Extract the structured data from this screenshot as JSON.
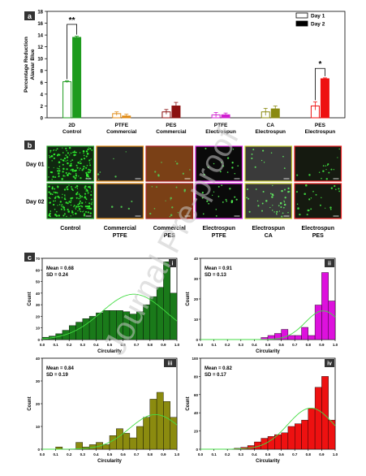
{
  "panel_labels": {
    "a": "a",
    "b": "b",
    "c": "c"
  },
  "watermark": "Journal Pre-proof",
  "colors": {
    "panel_label_bg": "#333333",
    "green": "#1e9b1e",
    "orange": "#d98a1a",
    "maroon": "#8b1a1a",
    "magenta": "#d020d0",
    "olive": "#8a8a10",
    "red": "#ee1111",
    "hist_green": "#1a7a1a",
    "curve": "#44dd44"
  },
  "chart_data": [
    {
      "id": "a",
      "type": "bar",
      "ylabel": "Percentage Reduction Alamar Blue",
      "ylim": [
        0,
        18
      ],
      "yticks": [
        0,
        2,
        4,
        6,
        8,
        10,
        12,
        14,
        16,
        18
      ],
      "categories": [
        {
          "line1": "2D",
          "line2": "Control",
          "color": "#1e9b1e"
        },
        {
          "line1": "PTFE",
          "line2": "Commercial",
          "color": "#e08a14"
        },
        {
          "line1": "PES",
          "line2": "Commercial",
          "color": "#8b1010"
        },
        {
          "line1": "PTFE",
          "line2": "Electrospun",
          "color": "#d020d0"
        },
        {
          "line1": "CA",
          "line2": "Electrospun",
          "color": "#8a8a10"
        },
        {
          "line1": "PES",
          "line2": "Electrospun",
          "color": "#ee1111"
        }
      ],
      "series": [
        {
          "name": "Day 1",
          "values": [
            6.1,
            0.7,
            1.0,
            0.5,
            1.0,
            2.0
          ],
          "errors": [
            0.15,
            0.3,
            0.4,
            0.4,
            0.6,
            0.7
          ]
        },
        {
          "name": "Day 2",
          "values": [
            13.6,
            0.3,
            2.0,
            0.5,
            1.5,
            6.6
          ],
          "errors": [
            0.2,
            0.3,
            0.6,
            0.3,
            0.5,
            0.15
          ]
        }
      ],
      "annotations": [
        {
          "category": 0,
          "text": "**"
        },
        {
          "category": 5,
          "text": "*"
        }
      ]
    },
    {
      "id": "c-i",
      "type": "histogram",
      "roman": "i",
      "color": "#1a7a1a",
      "xlabel": "Circularity",
      "ylabel": "Count",
      "xlim": [
        0,
        1.0
      ],
      "ylim": [
        0,
        70
      ],
      "yticks": [
        0,
        10,
        20,
        30,
        40,
        50,
        60,
        70
      ],
      "bins": [
        0,
        0.05,
        0.1,
        0.15,
        0.2,
        0.25,
        0.3,
        0.35,
        0.4,
        0.45,
        0.5,
        0.55,
        0.6,
        0.65,
        0.7,
        0.75,
        0.8,
        0.85,
        0.9,
        0.95
      ],
      "counts": [
        2,
        3,
        5,
        8,
        12,
        15,
        18,
        20,
        23,
        25,
        25,
        25,
        24,
        22,
        24,
        30,
        37,
        45,
        67,
        40
      ],
      "mean_text": "Mean = 0.68",
      "sd_text": "SD = 0.24",
      "mean": 0.68,
      "sd": 0.24
    },
    {
      "id": "c-ii",
      "type": "histogram",
      "roman": "ii",
      "color": "#dd11dd",
      "xlabel": "Circularity",
      "ylabel": "Count",
      "xlim": [
        0,
        1.0
      ],
      "ylim": [
        0,
        40
      ],
      "yticks": [
        0,
        10,
        20,
        30,
        40
      ],
      "bins": [
        0.45,
        0.5,
        0.55,
        0.6,
        0.65,
        0.7,
        0.75,
        0.8,
        0.85,
        0.9,
        0.95
      ],
      "counts": [
        1,
        2,
        3,
        5,
        2,
        2,
        6,
        2,
        17,
        33,
        19
      ],
      "mean_text": "Mean = 0.91",
      "sd_text": "SD = 0.13",
      "mean": 0.91,
      "sd": 0.13
    },
    {
      "id": "c-iii",
      "type": "histogram",
      "roman": "iii",
      "color": "#8b8b0f",
      "xlabel": "Circularity",
      "ylabel": "Count",
      "xlim": [
        0,
        1.0
      ],
      "ylim": [
        0,
        40
      ],
      "yticks": [
        0,
        10,
        20,
        30,
        40
      ],
      "bins": [
        0.1,
        0.15,
        0.2,
        0.25,
        0.3,
        0.35,
        0.4,
        0.45,
        0.5,
        0.55,
        0.6,
        0.65,
        0.7,
        0.75,
        0.8,
        0.85,
        0.9,
        0.95
      ],
      "counts": [
        1,
        0,
        0,
        3,
        1,
        2,
        3,
        2,
        6,
        9,
        7,
        5,
        10,
        14,
        22,
        25,
        21,
        14
      ],
      "mean_text": "Mean = 0.84",
      "sd_text": "SD = 0.19",
      "mean": 0.84,
      "sd": 0.19
    },
    {
      "id": "c-iv",
      "type": "histogram",
      "roman": "iv",
      "color": "#ee1111",
      "xlabel": "Circularity",
      "ylabel": "Count",
      "xlim": [
        0,
        1.0
      ],
      "ylim": [
        0,
        100
      ],
      "yticks": [
        0,
        20,
        40,
        60,
        80,
        100
      ],
      "bins": [
        0.25,
        0.3,
        0.35,
        0.4,
        0.45,
        0.5,
        0.55,
        0.6,
        0.65,
        0.7,
        0.75,
        0.8,
        0.85,
        0.9,
        0.95
      ],
      "counts": [
        1,
        2,
        4,
        8,
        12,
        14,
        16,
        18,
        25,
        28,
        32,
        45,
        68,
        80,
        32
      ],
      "mean_text": "Mean = 0.82",
      "sd_text": "SD = 0.17",
      "mean": 0.82,
      "sd": 0.17
    }
  ],
  "micrographs": {
    "rows": [
      {
        "label": "Day 01"
      },
      {
        "label": "Day 02"
      }
    ],
    "columns": [
      {
        "line1": "Control",
        "line2": "",
        "border": "#33aa33",
        "bg": "#102810",
        "dots": "#33ff33"
      },
      {
        "line1": "Commercial",
        "line2": "PTFE",
        "border": "#e08a14",
        "bg": "#262626",
        "dots": "#55dd55"
      },
      {
        "line1": "Commercial",
        "line2": "PES",
        "border": "#aa2222",
        "bg": "#7a4016",
        "dots": "#55cc55"
      },
      {
        "line1": "Electrospun",
        "line2": "PTFE",
        "border": "#dd22dd",
        "bg": "#0a0a0a",
        "dots": "#55ff55"
      },
      {
        "line1": "Electrospun",
        "line2": "CA",
        "border": "#cccc33",
        "bg": "#3a3a3a",
        "dots": "#66ff66"
      },
      {
        "line1": "Electrospun",
        "line2": "PES",
        "border": "#ee2222",
        "bg": "#151a10",
        "dots": "#44ee44"
      }
    ]
  }
}
